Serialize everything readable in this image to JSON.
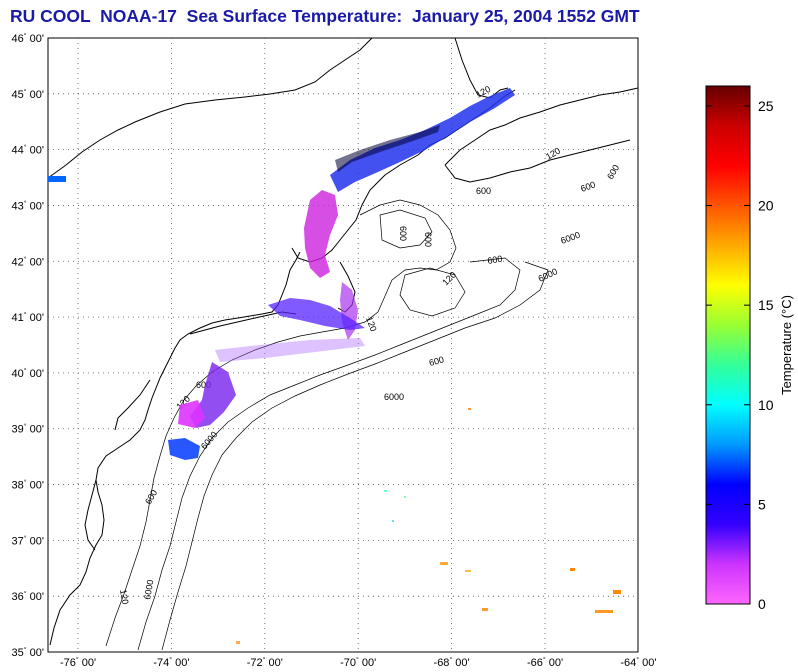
{
  "title": "RU COOL  NOAA-17  Sea Surface Temperature:  January 25, 2004 1552 GMT",
  "latitude_ticks": [
    {
      "deg": "46",
      "min": "00'"
    },
    {
      "deg": "45",
      "min": "00'"
    },
    {
      "deg": "44",
      "min": "00'"
    },
    {
      "deg": "43",
      "min": "00'"
    },
    {
      "deg": "42",
      "min": "00'"
    },
    {
      "deg": "41",
      "min": "00'"
    },
    {
      "deg": "40",
      "min": "00'"
    },
    {
      "deg": "39",
      "min": "00'"
    },
    {
      "deg": "38",
      "min": "00'"
    },
    {
      "deg": "37",
      "min": "00'"
    },
    {
      "deg": "36",
      "min": "00'"
    },
    {
      "deg": "35",
      "min": "00'"
    }
  ],
  "longitude_ticks": [
    {
      "deg": "-76",
      "min": "00'"
    },
    {
      "deg": "-74",
      "min": "00'"
    },
    {
      "deg": "-72",
      "min": "00'"
    },
    {
      "deg": "-70",
      "min": "00'"
    },
    {
      "deg": "-68",
      "min": "00'"
    },
    {
      "deg": "-66",
      "min": "00'"
    },
    {
      "deg": "-64",
      "min": "00'"
    }
  ],
  "contour_labels": [
    "120",
    "120",
    "600",
    "600",
    "600",
    "600",
    "600",
    "6000",
    "600",
    "6000",
    "120",
    "6000",
    "600",
    "120",
    "6000",
    "120",
    "600",
    "120",
    "600",
    "6000"
  ],
  "colorbar": {
    "title": "Temperature (°C)",
    "ticks": [
      "0",
      "5",
      "10",
      "15",
      "20",
      "25"
    ],
    "range": [
      0,
      26
    ],
    "colors": [
      "#ff66ff",
      "#cc33ff",
      "#3300ff",
      "#0000ff",
      "#0099ff",
      "#00ffff",
      "#33ff99",
      "#99ff33",
      "#ffff00",
      "#ffaa00",
      "#ff5500",
      "#ff0000",
      "#cc0000",
      "#660000"
    ]
  }
}
